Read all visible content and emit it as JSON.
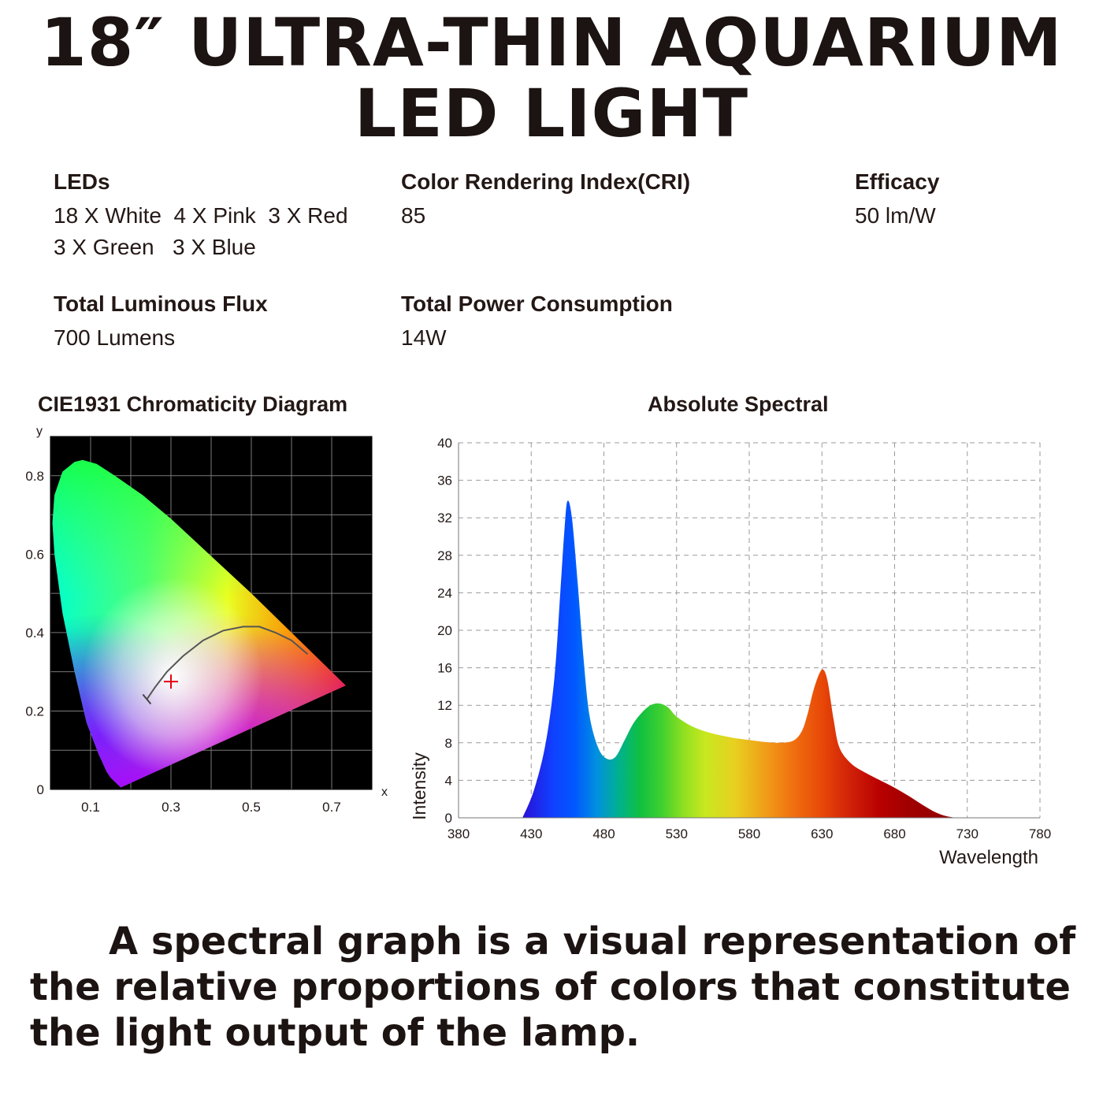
{
  "title": {
    "line1": "18″ ULTRA-THIN AQUARIUM",
    "line2": "LED LIGHT"
  },
  "specs": [
    {
      "label": "LEDs",
      "value": "18 X White  4 X Pink  3 X Red\n3 X Green   3 X Blue"
    },
    {
      "label": "Color Rendering Index(CRI)",
      "value": "85"
    },
    {
      "label": "Efficacy",
      "value": "50 lm/W"
    },
    {
      "label": "Total Luminous Flux",
      "value": "700 Lumens"
    },
    {
      "label": "Total Power Consumption",
      "value": "14W"
    }
  ],
  "description": [
    "A spectral graph is a visual representation of",
    "the relative proportions of colors that constitute",
    "the light output of the lamp."
  ],
  "chart_data": [
    {
      "type": "diagram",
      "title": "CIE1931 Chromaticity Diagram",
      "xlabel": "x",
      "ylabel": "y",
      "xlim": [
        0,
        0.8
      ],
      "ylim": [
        0,
        0.9
      ],
      "x_ticks": [
        "0.1",
        "0.3",
        "0.5",
        "0.7"
      ],
      "x_tick_values": [
        0.1,
        0.3,
        0.5,
        0.7
      ],
      "y_ticks": [
        "0",
        "0.2",
        "0.4",
        "0.6",
        "0.8"
      ],
      "y_tick_values": [
        0,
        0.2,
        0.4,
        0.6,
        0.8
      ],
      "grid": true,
      "background": "#000000",
      "spectral_locus": [
        [
          0.175,
          0.005
        ],
        [
          0.17,
          0.01
        ],
        [
          0.16,
          0.02
        ],
        [
          0.15,
          0.03
        ],
        [
          0.14,
          0.045
        ],
        [
          0.12,
          0.09
        ],
        [
          0.09,
          0.17
        ],
        [
          0.06,
          0.3
        ],
        [
          0.03,
          0.45
        ],
        [
          0.01,
          0.6
        ],
        [
          0.005,
          0.68
        ],
        [
          0.01,
          0.75
        ],
        [
          0.03,
          0.81
        ],
        [
          0.06,
          0.835
        ],
        [
          0.08,
          0.84
        ],
        [
          0.115,
          0.83
        ],
        [
          0.16,
          0.8
        ],
        [
          0.23,
          0.75
        ],
        [
          0.3,
          0.69
        ],
        [
          0.4,
          0.595
        ],
        [
          0.5,
          0.5
        ],
        [
          0.6,
          0.4
        ],
        [
          0.7,
          0.3
        ],
        [
          0.735,
          0.265
        ]
      ],
      "planckian_locus": [
        [
          0.24,
          0.23
        ],
        [
          0.26,
          0.26
        ],
        [
          0.29,
          0.3
        ],
        [
          0.33,
          0.34
        ],
        [
          0.38,
          0.38
        ],
        [
          0.43,
          0.405
        ],
        [
          0.48,
          0.415
        ],
        [
          0.52,
          0.415
        ],
        [
          0.56,
          0.4
        ],
        [
          0.6,
          0.38
        ],
        [
          0.64,
          0.345
        ]
      ],
      "measured_point": {
        "x": 0.3,
        "y": 0.275,
        "color": "#e60012"
      }
    },
    {
      "type": "area",
      "title": "Absolute Spectral",
      "xlabel": "Wavelength",
      "ylabel": "Intensity",
      "xlim": [
        380,
        780
      ],
      "ylim": [
        0,
        40
      ],
      "x_ticks": [
        380,
        430,
        480,
        530,
        580,
        630,
        680,
        730,
        780
      ],
      "y_ticks": [
        0,
        4,
        8,
        12,
        16,
        20,
        24,
        28,
        32,
        36,
        40
      ],
      "grid": true,
      "x": [
        424,
        432,
        440,
        446,
        450,
        453,
        455,
        458,
        462,
        466,
        470,
        476,
        482,
        488,
        494,
        500,
        506,
        512,
        518,
        524,
        530,
        540,
        550,
        560,
        570,
        580,
        590,
        600,
        610,
        616,
        620,
        624,
        628,
        631,
        634,
        638,
        642,
        650,
        660,
        670,
        680,
        690,
        700,
        708,
        715,
        722
      ],
      "y": [
        0,
        3,
        8,
        15,
        24,
        31,
        33.8,
        32,
        25,
        17,
        11,
        7.5,
        6.3,
        6.5,
        8.2,
        10,
        11.2,
        12,
        12.2,
        11.8,
        10.8,
        9.8,
        9.2,
        8.8,
        8.5,
        8.3,
        8.1,
        8,
        8.2,
        9.2,
        11,
        13.5,
        15.3,
        15.8,
        14.5,
        10.5,
        7.5,
        5.8,
        4.8,
        4,
        3.2,
        2.3,
        1.3,
        0.6,
        0.2,
        0
      ]
    }
  ]
}
